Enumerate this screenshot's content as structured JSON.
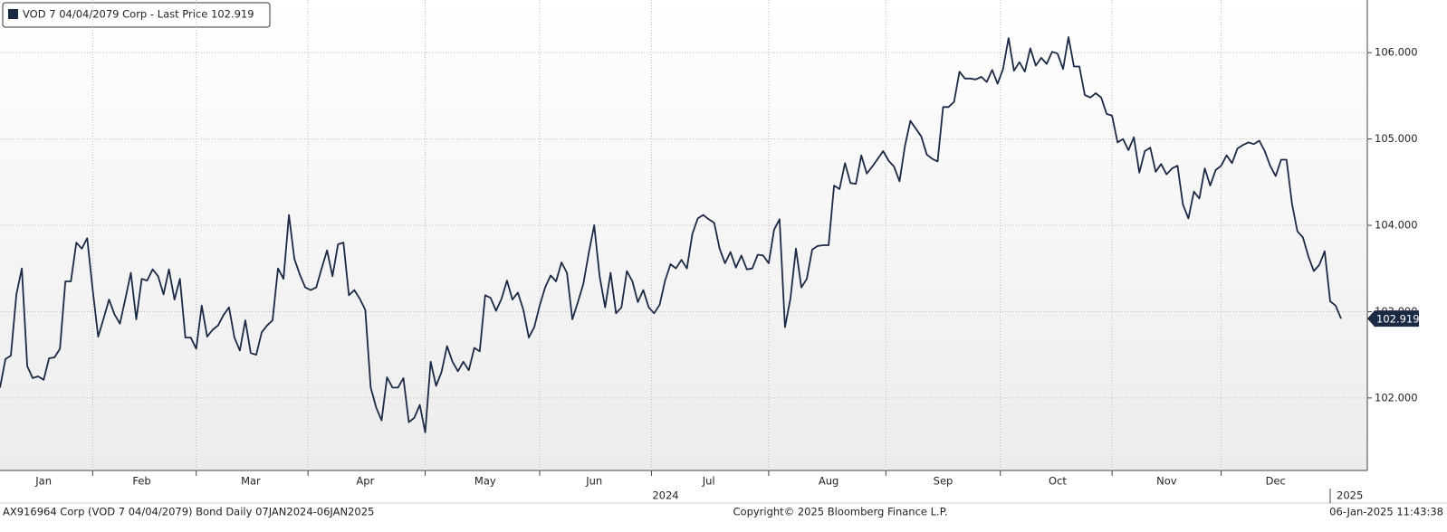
{
  "chart_data": {
    "type": "line",
    "legend": "VOD 7 04/04/2079 Corp - Last Price 102.919",
    "footer_left": "AX916964 Corp (VOD 7 04/04/2079) Bond  Daily 07JAN2024-06JAN2025",
    "footer_center": "Copyright© 2025 Bloomberg Finance L.P.",
    "footer_right": "06-Jan-2025 11:43:38",
    "years": [
      "2024",
      "2025"
    ],
    "categories": [
      null,
      null,
      null,
      null,
      null,
      null,
      null,
      null,
      "Jan",
      null,
      null,
      null,
      null,
      null,
      null,
      null,
      null,
      null,
      null,
      null,
      null,
      null,
      null,
      null,
      null,
      null,
      "Feb",
      null,
      null,
      null,
      null,
      null,
      null,
      null,
      null,
      null,
      null,
      null,
      null,
      null,
      null,
      null,
      null,
      null,
      null,
      null,
      "Mar",
      null,
      null,
      null,
      null,
      null,
      null,
      null,
      null,
      null,
      null,
      null,
      null,
      null,
      null,
      null,
      null,
      null,
      null,
      null,
      null,
      "Apr",
      null,
      null,
      null,
      null,
      null,
      null,
      null,
      null,
      null,
      null,
      null,
      null,
      null,
      null,
      null,
      null,
      null,
      null,
      null,
      null,
      null,
      "May",
      null,
      null,
      null,
      null,
      null,
      null,
      null,
      null,
      null,
      null,
      null,
      null,
      null,
      null,
      null,
      null,
      null,
      null,
      null,
      "Jun",
      null,
      null,
      null,
      null,
      null,
      null,
      null,
      null,
      null,
      null,
      null,
      null,
      null,
      null,
      null,
      null,
      null,
      null,
      null,
      null,
      "Jul",
      null,
      null,
      null,
      null,
      null,
      null,
      null,
      null,
      null,
      null,
      null,
      null,
      null,
      null,
      null,
      null,
      null,
      null,
      null,
      null,
      null,
      "Aug",
      null,
      null,
      null,
      null,
      null,
      null,
      null,
      null,
      null,
      null,
      null,
      null,
      null,
      null,
      null,
      null,
      null,
      null,
      null,
      null,
      "Sep",
      null,
      null,
      null,
      null,
      null,
      null,
      null,
      null,
      null,
      null,
      null,
      null,
      null,
      null,
      null,
      null,
      null,
      null,
      null,
      null,
      "Oct",
      null,
      null,
      null,
      null,
      null,
      null,
      null,
      null,
      null,
      null,
      null,
      null,
      null,
      null,
      null,
      null,
      null,
      null,
      null,
      "Nov",
      null,
      null,
      null,
      null,
      null,
      null,
      null,
      null,
      null,
      null,
      null,
      null,
      null,
      null,
      null,
      null,
      null,
      null,
      null,
      "Dec",
      null,
      null,
      null,
      null,
      null,
      null,
      null,
      null,
      null,
      null,
      null,
      null
    ],
    "series": [
      {
        "name": "VOD 7 04/04/2079 Corp - Last Price",
        "color": "#1b2a44",
        "values": [
          102.12,
          102.45,
          102.49,
          103.2,
          103.5,
          102.37,
          102.23,
          102.25,
          102.21,
          102.46,
          102.47,
          102.57,
          103.35,
          103.35,
          103.8,
          103.73,
          103.85,
          103.26,
          102.71,
          102.92,
          103.14,
          102.97,
          102.86,
          103.15,
          103.45,
          102.91,
          103.38,
          103.36,
          103.49,
          103.41,
          103.2,
          103.49,
          103.14,
          103.38,
          102.7,
          102.7,
          102.57,
          103.07,
          102.71,
          102.79,
          102.84,
          102.96,
          103.05,
          102.7,
          102.55,
          102.9,
          102.52,
          102.5,
          102.76,
          102.84,
          102.9,
          103.5,
          103.38,
          104.12,
          103.61,
          103.43,
          103.28,
          103.25,
          103.28,
          103.5,
          103.71,
          103.41,
          103.78,
          103.8,
          103.19,
          103.25,
          103.15,
          103.02,
          102.12,
          101.89,
          101.74,
          102.24,
          102.12,
          102.12,
          102.23,
          101.72,
          101.77,
          101.92,
          101.6,
          102.42,
          102.14,
          102.3,
          102.6,
          102.42,
          102.31,
          102.42,
          102.32,
          102.58,
          102.54,
          103.19,
          103.16,
          103.01,
          103.15,
          103.36,
          103.14,
          103.22,
          103.02,
          102.7,
          102.82,
          103.07,
          103.28,
          103.42,
          103.35,
          103.57,
          103.45,
          102.91,
          103.11,
          103.32,
          103.68,
          104.0,
          103.41,
          103.05,
          103.45,
          102.98,
          103.05,
          103.47,
          103.35,
          103.11,
          103.25,
          103.05,
          102.98,
          103.08,
          103.36,
          103.55,
          103.5,
          103.6,
          103.5,
          103.9,
          104.08,
          104.12,
          104.07,
          104.03,
          103.73,
          103.56,
          103.69,
          103.51,
          103.65,
          103.49,
          103.5,
          103.66,
          103.65,
          103.56,
          103.95,
          104.07,
          102.82,
          103.15,
          103.73,
          103.28,
          103.38,
          103.72,
          103.76,
          103.77,
          103.77,
          104.46,
          104.42,
          104.72,
          104.49,
          104.48,
          104.81,
          104.6,
          104.68,
          104.77,
          104.86,
          104.75,
          104.68,
          104.51,
          104.92,
          105.21,
          105.12,
          105.03,
          104.82,
          104.77,
          104.74,
          105.37,
          105.37,
          105.43,
          105.78,
          105.7,
          105.7,
          105.69,
          105.72,
          105.66,
          105.8,
          105.64,
          105.81,
          106.17,
          105.79,
          105.89,
          105.78,
          106.05,
          105.85,
          105.94,
          105.87,
          106.01,
          105.99,
          105.81,
          106.18,
          105.84,
          105.84,
          105.51,
          105.48,
          105.53,
          105.48,
          105.29,
          105.27,
          104.96,
          105.0,
          104.87,
          105.02,
          104.61,
          104.86,
          104.9,
          104.62,
          104.71,
          104.59,
          104.66,
          104.69,
          104.24,
          104.08,
          104.39,
          104.31,
          104.66,
          104.46,
          104.64,
          104.69,
          104.81,
          104.72,
          104.89,
          104.93,
          104.96,
          104.94,
          104.98,
          104.86,
          104.69,
          104.57,
          104.76,
          104.76,
          104.25,
          103.93,
          103.86,
          103.64,
          103.47,
          103.54,
          103.7,
          103.12,
          103.07,
          102.919
        ]
      }
    ],
    "ylim": [
      101.16,
      106.61
    ],
    "yticks": [
      {
        "value": 102,
        "label": "102.000"
      },
      {
        "value": 103,
        "label": "103.000"
      },
      {
        "value": 104,
        "label": "104.000"
      },
      {
        "value": 105,
        "label": "105.000"
      },
      {
        "value": 106,
        "label": "106.000"
      }
    ],
    "grid": true
  }
}
